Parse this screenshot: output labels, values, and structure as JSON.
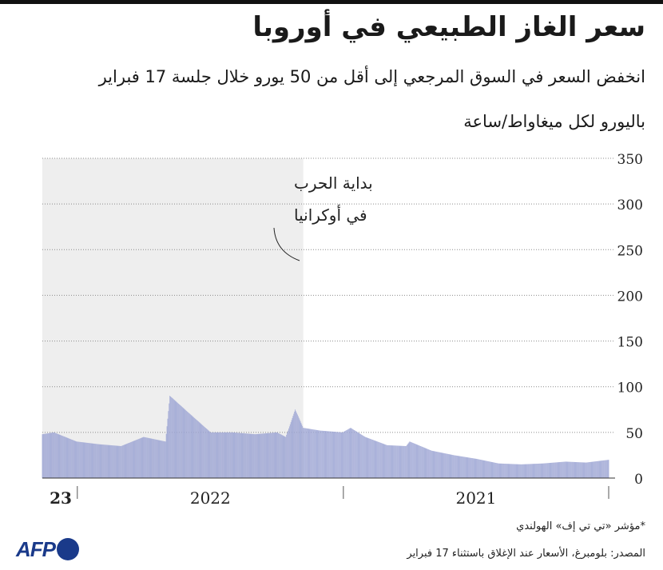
{
  "header": {
    "title": "سعر الغاز الطبيعي في أوروبا",
    "subtitle": "انخفض السعر في السوق المرجعي إلى أقل من 50 يورو خلال جلسة 17 فبراير",
    "unit": "باليورو لكل ميغاواط/ساعة"
  },
  "footer": {
    "footnote": "*مؤشر «تي تي إف» الهولندي",
    "source": "المصدر: بلومبرغ، الأسعار عند الإغلاق باستثناء 17 فبراير",
    "logo": "AFP"
  },
  "colors": {
    "bar": "#9ea6d4",
    "highlight": "#eeeeee",
    "grid": "#8c8c8c",
    "logo": "#1a3a8a"
  },
  "chart_data": {
    "type": "bar",
    "title": "سعر الغاز الطبيعي في أوروبا",
    "ylabel": "باليورو لكل ميغاواط/ساعة",
    "ylim": [
      0,
      350
    ],
    "yticks": [
      0,
      50,
      100,
      150,
      200,
      250,
      300,
      350
    ],
    "xaxis_direction": "right-to-left",
    "x_labels": [
      "23",
      "2022",
      "2021"
    ],
    "highlight_region": {
      "from": "2022-02-24",
      "to": "2023-02-17"
    },
    "annotation": {
      "line1": "بداية الحرب",
      "line2": "في أوكرانيا",
      "date": "2022-02-24"
    },
    "series": [
      {
        "name": "TTF",
        "dates": [
          "2021-01-01",
          "2021-02-01",
          "2021-03-01",
          "2021-04-01",
          "2021-05-01",
          "2021-06-01",
          "2021-07-01",
          "2021-08-01",
          "2021-09-01",
          "2021-10-01",
          "2021-10-06",
          "2021-11-01",
          "2021-12-01",
          "2021-12-21",
          "2022-01-01",
          "2022-02-01",
          "2022-02-24",
          "2022-03-07",
          "2022-03-20",
          "2022-04-01",
          "2022-05-01",
          "2022-06-01",
          "2022-07-01",
          "2022-08-01",
          "2022-08-26",
          "2022-09-01",
          "2022-10-01",
          "2022-11-01",
          "2022-12-01",
          "2023-01-01",
          "2023-02-01",
          "2023-02-17"
        ],
        "values": [
          20,
          17,
          18,
          16,
          15,
          16,
          21,
          25,
          30,
          40,
          35,
          36,
          45,
          55,
          50,
          52,
          55,
          75,
          45,
          50,
          48,
          50,
          50,
          72,
          90,
          40,
          45,
          35,
          37,
          40,
          50,
          48
        ]
      }
    ]
  }
}
